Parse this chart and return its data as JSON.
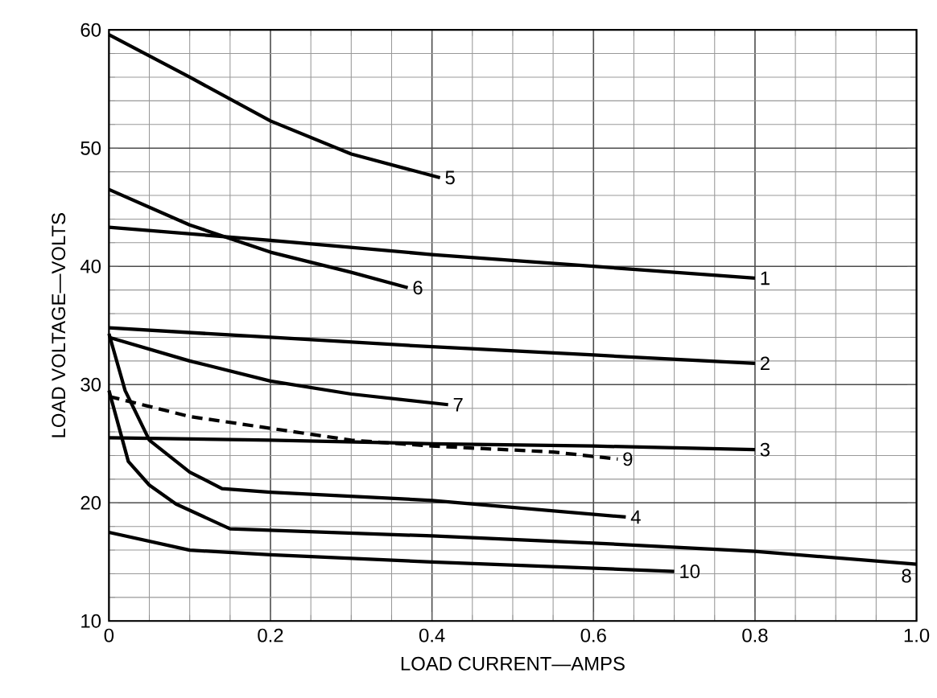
{
  "chart_data": {
    "type": "line",
    "xlabel": "LOAD CURRENT—AMPS",
    "ylabel": "LOAD VOLTAGE—VOLTS",
    "xlim": [
      0,
      1.0
    ],
    "ylim": [
      10,
      60
    ],
    "xticks": [
      {
        "value": 0,
        "label": "0"
      },
      {
        "value": 0.2,
        "label": "0.2"
      },
      {
        "value": 0.4,
        "label": "0.4"
      },
      {
        "value": 0.6,
        "label": "0.6"
      },
      {
        "value": 0.8,
        "label": "0.8"
      },
      {
        "value": 1.0,
        "label": "1.0"
      }
    ],
    "yticks": [
      10,
      20,
      30,
      40,
      50,
      60
    ],
    "grid": true,
    "marker": "none",
    "line_style": "solid",
    "series": [
      {
        "name": "1",
        "color": "#000000",
        "x": [
          0,
          0.2,
          0.4,
          0.6,
          0.8
        ],
        "values": [
          43.3,
          42.2,
          41.0,
          40.0,
          39.0
        ]
      },
      {
        "name": "2",
        "color": "#000000",
        "x": [
          0,
          0.2,
          0.4,
          0.6,
          0.8
        ],
        "values": [
          34.8,
          34.0,
          33.2,
          32.5,
          31.8
        ]
      },
      {
        "name": "3",
        "color": "#000000",
        "x": [
          0,
          0.2,
          0.4,
          0.6,
          0.8
        ],
        "values": [
          25.5,
          25.3,
          25.0,
          24.8,
          24.5
        ]
      },
      {
        "name": "4",
        "color": "#000000",
        "x": [
          0,
          0.02,
          0.05,
          0.1,
          0.14,
          0.2,
          0.4,
          0.64
        ],
        "values": [
          34.3,
          29.5,
          25.3,
          22.6,
          21.2,
          20.9,
          20.2,
          18.8
        ]
      },
      {
        "name": "5",
        "color": "#000000",
        "x": [
          0,
          0.1,
          0.2,
          0.3,
          0.41
        ],
        "values": [
          59.6,
          56.0,
          52.3,
          49.5,
          47.5
        ]
      },
      {
        "name": "6",
        "color": "#000000",
        "x": [
          0,
          0.1,
          0.2,
          0.3,
          0.37
        ],
        "values": [
          46.5,
          43.5,
          41.2,
          39.5,
          38.2
        ]
      },
      {
        "name": "7",
        "color": "#000000",
        "x": [
          0,
          0.1,
          0.2,
          0.3,
          0.42
        ],
        "values": [
          34.0,
          32.0,
          30.3,
          29.2,
          28.3
        ]
      },
      {
        "name": "8",
        "color": "#000000",
        "x": [
          0,
          0.024,
          0.05,
          0.083,
          0.15,
          0.4,
          0.6,
          0.8,
          1.0
        ],
        "values": [
          29.5,
          23.5,
          21.5,
          19.9,
          17.8,
          17.2,
          16.6,
          15.9,
          14.8
        ]
      },
      {
        "name": "9",
        "color": "#000000",
        "line_style": "dashed",
        "x": [
          0,
          0.1,
          0.2,
          0.3,
          0.4,
          0.55,
          0.63
        ],
        "values": [
          29.0,
          27.3,
          26.3,
          25.3,
          24.8,
          24.3,
          23.7
        ]
      },
      {
        "name": "10",
        "color": "#000000",
        "x": [
          0,
          0.1,
          0.2,
          0.4,
          0.7
        ],
        "values": [
          17.5,
          16.0,
          15.6,
          15.0,
          14.2
        ]
      }
    ]
  }
}
